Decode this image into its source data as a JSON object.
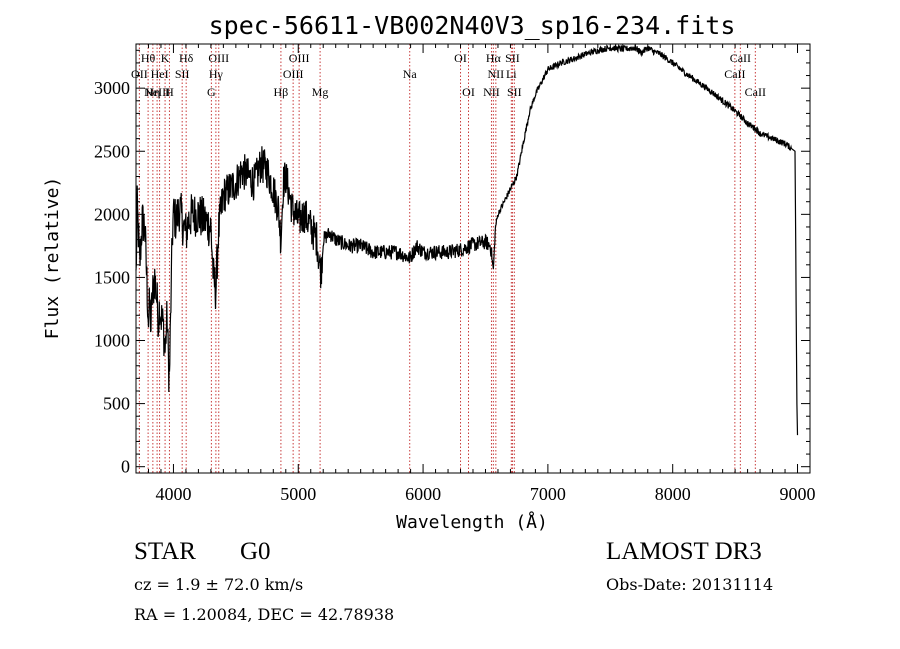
{
  "chart_data": {
    "type": "line",
    "title": "spec-56611-VB002N40V3_sp16-234.fits",
    "xlabel": "Wavelength (Å)",
    "ylabel": "Flux (relative)",
    "xlim": [
      3700,
      9100
    ],
    "ylim": [
      -50,
      3350
    ],
    "x_ticks": [
      4000,
      5000,
      6000,
      7000,
      8000,
      9000
    ],
    "y_ticks": [
      0,
      500,
      1000,
      1500,
      2000,
      2500,
      3000
    ],
    "series": [
      {
        "name": "flux",
        "x": [
          3700,
          3710,
          3730,
          3750,
          3770,
          3790,
          3800,
          3810,
          3820,
          3830,
          3850,
          3870,
          3880,
          3890,
          3900,
          3920,
          3933,
          3940,
          3950,
          3960,
          3968,
          3980,
          3990,
          4000,
          4020,
          4050,
          4080,
          4102,
          4120,
          4150,
          4200,
          4250,
          4300,
          4320,
          4340,
          4360,
          4400,
          4450,
          4500,
          4550,
          4600,
          4650,
          4700,
          4750,
          4800,
          4840,
          4861,
          4880,
          4900,
          4920,
          4950,
          5000,
          5050,
          5100,
          5150,
          5170,
          5183,
          5200,
          5250,
          5300,
          5400,
          5500,
          5600,
          5700,
          5800,
          5893,
          5950,
          6000,
          6100,
          6200,
          6300,
          6400,
          6500,
          6540,
          6563,
          6580,
          6600,
          6650,
          6700,
          6750,
          6800,
          6850,
          6900,
          6950,
          7000,
          7050,
          7100,
          7200,
          7300,
          7400,
          7500,
          7600,
          7700,
          7750,
          7800,
          7850,
          7900,
          8000,
          8100,
          8200,
          8300,
          8400,
          8498,
          8542,
          8600,
          8662,
          8700,
          8800,
          8900,
          8980,
          8995,
          9000
        ],
        "y": [
          1500,
          2050,
          1600,
          1950,
          1900,
          1400,
          1150,
          1300,
          1100,
          1350,
          1500,
          1300,
          1150,
          1300,
          1200,
          1100,
          900,
          1050,
          1200,
          800,
          700,
          1300,
          1800,
          2000,
          1950,
          2050,
          1900,
          1850,
          1950,
          2000,
          2000,
          1950,
          1900,
          1500,
          1400,
          1850,
          2150,
          2200,
          2250,
          2350,
          2300,
          2250,
          2400,
          2350,
          2200,
          2050,
          1800,
          2250,
          2300,
          2200,
          2050,
          1950,
          2000,
          1900,
          1800,
          1600,
          1550,
          1800,
          1850,
          1800,
          1750,
          1750,
          1700,
          1700,
          1700,
          1650,
          1750,
          1700,
          1700,
          1700,
          1720,
          1760,
          1780,
          1750,
          1560,
          1900,
          2000,
          2100,
          2200,
          2300,
          2550,
          2800,
          2950,
          3050,
          3150,
          3170,
          3200,
          3230,
          3270,
          3300,
          3320,
          3310,
          3320,
          3280,
          3320,
          3290,
          3270,
          3200,
          3120,
          3050,
          2980,
          2900,
          2820,
          2780,
          2720,
          2680,
          2640,
          2600,
          2560,
          2500,
          500,
          250
        ]
      }
    ],
    "lines": [
      {
        "x": 3797,
        "label": "Hθ",
        "row": 1
      },
      {
        "x": 3727,
        "label": "OII",
        "row": 2
      },
      {
        "x": 3835,
        "label": "Hη",
        "row": 3
      },
      {
        "x": 3869,
        "label": "NeIII",
        "row": 3
      },
      {
        "x": 3889,
        "label": "HeI",
        "row": 2
      },
      {
        "x": 3933,
        "label": "K",
        "row": 1
      },
      {
        "x": 3968,
        "label": "H",
        "row": 3
      },
      {
        "x": 4070,
        "label": "SII",
        "row": 2
      },
      {
        "x": 4102,
        "label": "Hδ",
        "row": 1
      },
      {
        "x": 4304,
        "label": "G",
        "row": 3
      },
      {
        "x": 4340,
        "label": "Hγ",
        "row": 2
      },
      {
        "x": 4363,
        "label": "OIII",
        "row": 1
      },
      {
        "x": 4861,
        "label": "Hβ",
        "row": 3
      },
      {
        "x": 4959,
        "label": "OIII",
        "row": 2
      },
      {
        "x": 5007,
        "label": "OIII",
        "row": 1
      },
      {
        "x": 5175,
        "label": "Mg",
        "row": 3
      },
      {
        "x": 5893,
        "label": "Na",
        "row": 2
      },
      {
        "x": 6300,
        "label": "OI",
        "row": 1
      },
      {
        "x": 6364,
        "label": "OI",
        "row": 3
      },
      {
        "x": 6548,
        "label": "NII",
        "row": 3
      },
      {
        "x": 6563,
        "label": "Hα",
        "row": 1
      },
      {
        "x": 6583,
        "label": "NII",
        "row": 2
      },
      {
        "x": 6707,
        "label": "Li",
        "row": 2
      },
      {
        "x": 6716,
        "label": "SII",
        "row": 1
      },
      {
        "x": 6731,
        "label": "SII",
        "row": 3
      },
      {
        "x": 8498,
        "label": "CaII",
        "row": 2
      },
      {
        "x": 8542,
        "label": "CaII",
        "row": 1
      },
      {
        "x": 8662,
        "label": "CaII",
        "row": 3
      }
    ]
  },
  "info": {
    "object_class": "STAR",
    "subclass": "G0",
    "survey": "LAMOST DR3",
    "redshift": "cz = 1.9 ± 72.0 km/s",
    "obs_date": "Obs-Date: 20131114",
    "coordinates": "RA =    1.20084, DEC =   42.78938"
  },
  "colors": {
    "foreground": "#000000",
    "line_marker": "#c83c3c",
    "background": "#ffffff"
  }
}
